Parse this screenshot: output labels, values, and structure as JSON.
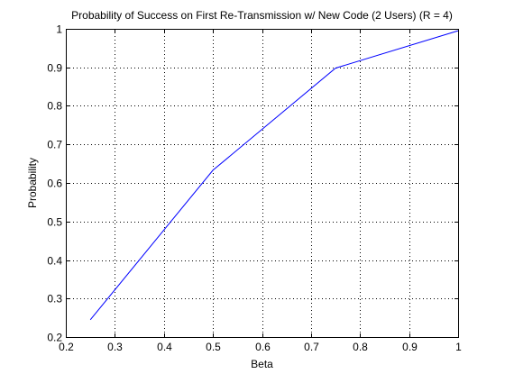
{
  "chart_data": {
    "type": "line",
    "title": "Probability of Success on First Re-Transmission w/ New Code (2 Users) (R = 4)",
    "xlabel": "Beta",
    "ylabel": "Probability",
    "xlim": [
      0.2,
      1
    ],
    "ylim": [
      0.2,
      1
    ],
    "xticks": [
      0.2,
      0.3,
      0.4,
      0.5,
      0.6,
      0.7,
      0.8,
      0.9,
      1
    ],
    "xtick_labels": [
      "0.2",
      "0.3",
      "0.4",
      "0.5",
      "0.6",
      "0.7",
      "0.8",
      "0.9",
      "1"
    ],
    "yticks": [
      0.2,
      0.3,
      0.4,
      0.5,
      0.6,
      0.7,
      0.8,
      0.9,
      1
    ],
    "ytick_labels": [
      "0.2",
      "0.3",
      "0.4",
      "0.5",
      "0.6",
      "0.7",
      "0.8",
      "0.9",
      "1"
    ],
    "grid": true,
    "grid_style": "dotted",
    "series": [
      {
        "x": [
          0.25,
          0.5,
          0.75,
          1.0
        ],
        "y": [
          0.245,
          0.633,
          0.898,
          0.995
        ],
        "color": "#0000ff"
      }
    ]
  }
}
